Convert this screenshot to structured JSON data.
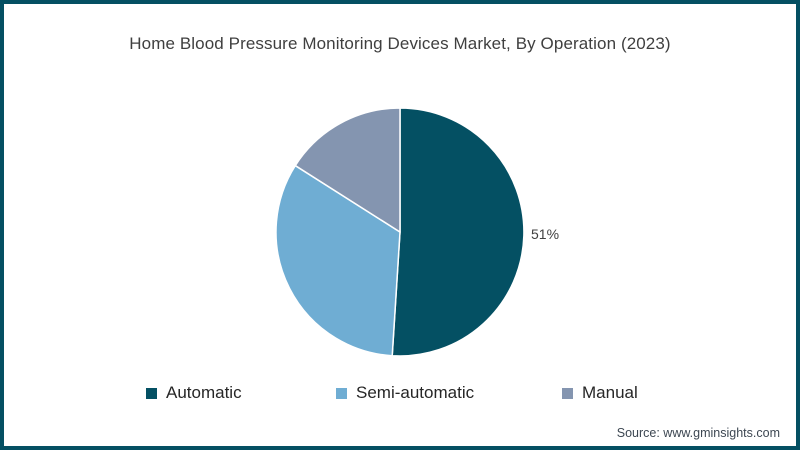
{
  "frame": {
    "border_color": "#045063",
    "background_color": "#ffffff"
  },
  "title": "Home Blood Pressure Monitoring Devices Market, By Operation (2023)",
  "chart_data": {
    "type": "pie",
    "title": "Home Blood Pressure Monitoring Devices Market, By Operation (2023)",
    "categories": [
      "Automatic",
      "Semi-automatic",
      "Manual"
    ],
    "values": [
      51,
      33,
      16
    ],
    "unit": "%",
    "colors": [
      "#045063",
      "#6fadd3",
      "#8495b0"
    ],
    "start_angle": "top",
    "direction": "clockwise",
    "separator_color": "#ffffff",
    "data_labels_visible": [
      "51%",
      "",
      ""
    ],
    "legend_position": "bottom"
  },
  "pie_label": {
    "text": "51%"
  },
  "legend": {
    "items": [
      {
        "label": "Automatic",
        "color": "#045063"
      },
      {
        "label": "Semi-automatic",
        "color": "#6fadd3"
      },
      {
        "label": "Manual",
        "color": "#8495b0"
      }
    ]
  },
  "source": {
    "text": "Source: www.gminsights.com"
  }
}
